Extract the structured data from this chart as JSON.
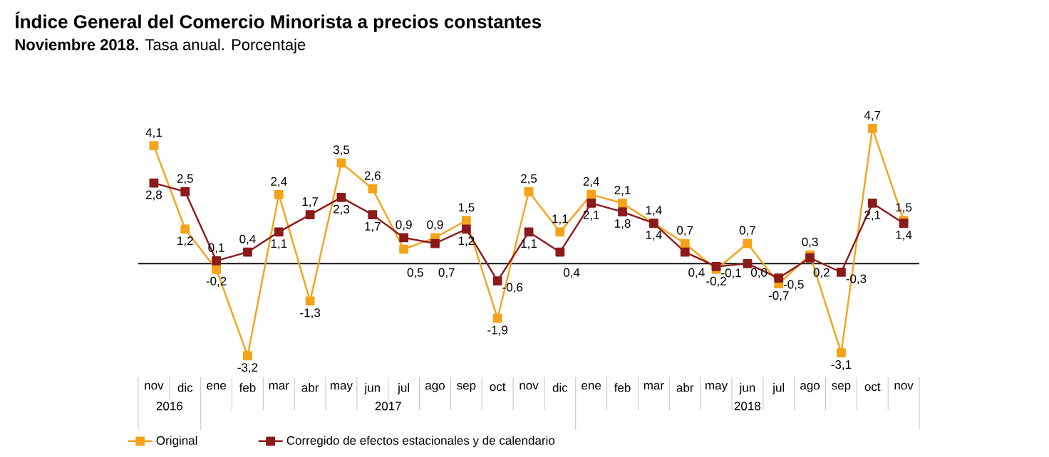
{
  "chart_data": {
    "type": "line",
    "title": "Índice General del Comercio Minorista a precios constantes",
    "subtitle": "**Noviembre 2018.** Tasa anual. Porcentaje",
    "categories": [
      "nov",
      "dic",
      "ene",
      "feb",
      "mar",
      "abr",
      "may",
      "jun",
      "jul",
      "ago",
      "sep",
      "oct",
      "nov",
      "dic",
      "ene",
      "feb",
      "mar",
      "abr",
      "may",
      "jun",
      "jul",
      "ago",
      "sep",
      "oct",
      "nov"
    ],
    "series": [
      {
        "name": "Original",
        "color": "#f5a31a",
        "values": [
          4.1,
          1.2,
          -0.2,
          -3.2,
          2.4,
          -1.3,
          3.5,
          2.6,
          0.5,
          0.9,
          1.5,
          -1.9,
          2.5,
          1.1,
          2.4,
          2.1,
          1.4,
          0.7,
          -0.2,
          0.7,
          -0.7,
          0.3,
          -3.1,
          4.7,
          1.5
        ],
        "value_labels": [
          "4,1",
          "1,2",
          "-0,2",
          "-3,2",
          "2,4",
          "-1,3",
          "3,5",
          "2,6",
          "0,5",
          "0,9",
          "1,5",
          "-1,9",
          "2,5",
          "1,1",
          "2,4",
          "2,1",
          "1,4",
          "0,7",
          "-0,2",
          "0,7",
          "-0,7",
          "0,3",
          "-3,1",
          "4,7",
          "1,5"
        ]
      },
      {
        "name": "Corregido de efectos estacionales y de calendario",
        "color": "#8b1a1a",
        "values": [
          2.8,
          2.5,
          0.1,
          0.4,
          1.1,
          1.7,
          2.3,
          1.7,
          0.9,
          0.7,
          1.2,
          -0.6,
          1.1,
          0.4,
          2.1,
          1.8,
          1.4,
          0.4,
          -0.1,
          0.0,
          -0.5,
          0.2,
          -0.3,
          2.1,
          1.4
        ],
        "value_labels": [
          "2,8",
          "2,5",
          "0,1",
          "0,4",
          "1,1",
          "1,7",
          "2,3",
          "1,7",
          "0,9",
          "0,7",
          "1,2",
          "-0,6",
          "1,1",
          "0,4",
          "2,1",
          "1,8",
          "1,4",
          "0,4",
          "-0,1",
          "0,0",
          "-0,5",
          "0,2",
          "-0,3",
          "2,1",
          "1,4"
        ]
      }
    ],
    "annotations": [
      "2016",
      "2017",
      "2018"
    ],
    "data_labels": true,
    "legend": "bottom",
    "marker": "square",
    "line_style": "solid",
    "grid": false,
    "tick_labels": "x"
  }
}
